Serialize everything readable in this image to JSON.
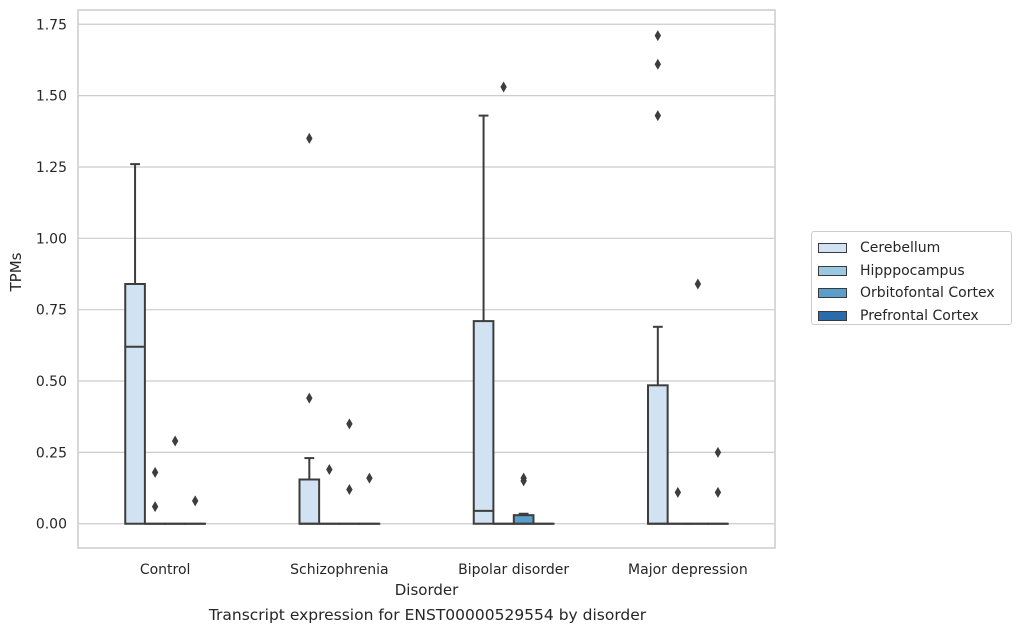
{
  "chart_data": {
    "type": "box",
    "xlabel": "Disorder",
    "ylabel": "TPMs",
    "caption": "Transcript expression for ENST00000529554 by disorder",
    "ylim": [
      -0.085,
      1.8
    ],
    "yticks": [
      0,
      0.25,
      0.5,
      0.75,
      1.0,
      1.25,
      1.5,
      1.75
    ],
    "ytick_labels": [
      "0.00",
      "0.25",
      "0.50",
      "0.75",
      "1.00",
      "1.25",
      "1.50",
      "1.75"
    ],
    "grid": "horizontal",
    "legend_position": "right",
    "categories": [
      "Control",
      "Schizophrenia",
      "Bipolar disorder",
      "Major depression"
    ],
    "series": [
      {
        "name": "Cerebellum",
        "color": "#d1e2f2",
        "boxes": [
          {
            "q1": 0,
            "median": 0.62,
            "q3": 0.84,
            "whislo": 0,
            "whishi": 1.26,
            "fliers": []
          },
          {
            "q1": 0,
            "median": 0,
            "q3": 0.155,
            "whislo": 0,
            "whishi": 0.23,
            "fliers": [
              0.44,
              1.35
            ]
          },
          {
            "q1": 0,
            "median": 0.045,
            "q3": 0.71,
            "whislo": 0,
            "whishi": 1.43,
            "fliers": []
          },
          {
            "q1": 0,
            "median": 0,
            "q3": 0.485,
            "whislo": 0,
            "whishi": 0.69,
            "fliers": [
              1.43,
              1.61,
              1.71
            ]
          }
        ]
      },
      {
        "name": "Hipppocampus",
        "color": "#9ac8e0",
        "boxes": [
          {
            "q1": 0,
            "median": 0,
            "q3": 0,
            "whislo": 0,
            "whishi": 0,
            "fliers": [
              0.06,
              0.18
            ]
          },
          {
            "q1": 0,
            "median": 0,
            "q3": 0,
            "whislo": 0,
            "whishi": 0,
            "fliers": [
              0.19
            ]
          },
          {
            "q1": 0,
            "median": 0,
            "q3": 0,
            "whislo": 0,
            "whishi": 0,
            "fliers": [
              1.53
            ]
          },
          {
            "q1": 0,
            "median": 0,
            "q3": 0,
            "whislo": 0,
            "whishi": 0,
            "fliers": [
              0.11
            ]
          }
        ]
      },
      {
        "name": "Orbitofontal Cortex",
        "color": "#5a9fcb",
        "boxes": [
          {
            "q1": 0,
            "median": 0,
            "q3": 0,
            "whislo": 0,
            "whishi": 0,
            "fliers": [
              0.29
            ]
          },
          {
            "q1": 0,
            "median": 0,
            "q3": 0,
            "whislo": 0,
            "whishi": 0,
            "fliers": [
              0.12,
              0.35
            ]
          },
          {
            "q1": 0,
            "median": 0,
            "q3": 0.03,
            "whislo": 0,
            "whishi": 0.035,
            "fliers": [
              0.15,
              0.16
            ]
          },
          {
            "q1": 0,
            "median": 0,
            "q3": 0,
            "whislo": 0,
            "whishi": 0,
            "fliers": [
              0.84
            ]
          }
        ]
      },
      {
        "name": "Prefrontal Cortex",
        "color": "#2a6bac",
        "boxes": [
          {
            "q1": 0,
            "median": 0,
            "q3": 0,
            "whislo": 0,
            "whishi": 0,
            "fliers": [
              0.08
            ]
          },
          {
            "q1": 0,
            "median": 0,
            "q3": 0,
            "whislo": 0,
            "whishi": 0,
            "fliers": [
              0.16
            ]
          },
          {
            "q1": 0,
            "median": 0,
            "q3": 0,
            "whislo": 0,
            "whishi": 0,
            "fliers": []
          },
          {
            "q1": 0,
            "median": 0,
            "q3": 0,
            "whislo": 0,
            "whishi": 0,
            "fliers": [
              0.11,
              0.25
            ]
          }
        ]
      }
    ]
  }
}
